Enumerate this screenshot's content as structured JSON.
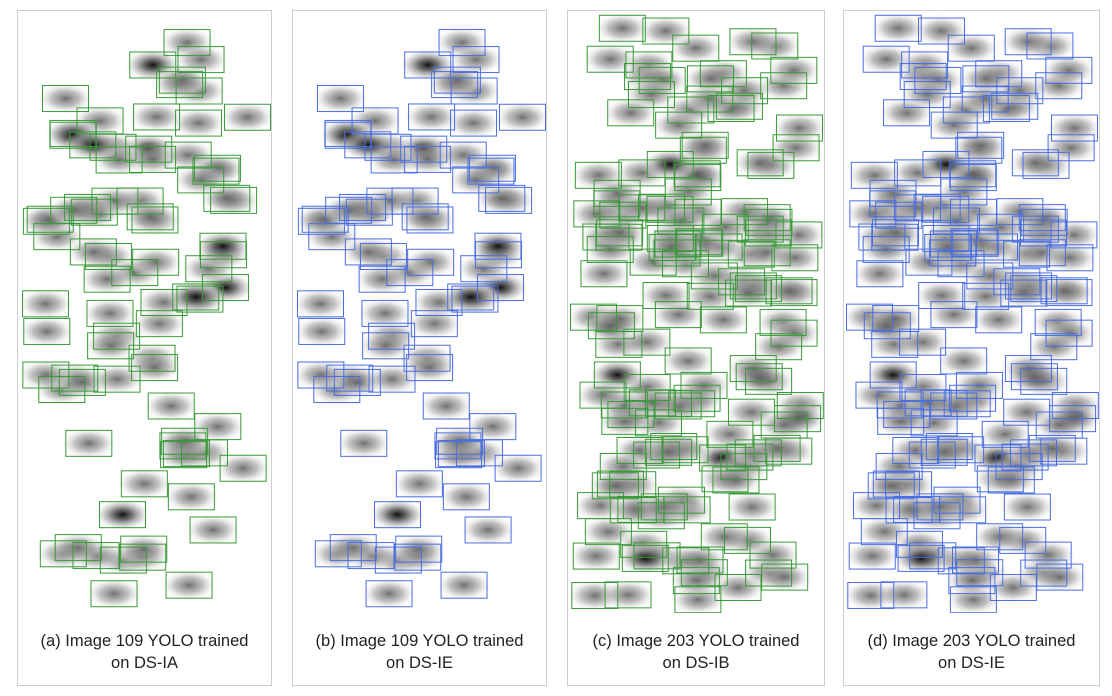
{
  "panels": [
    {
      "caption_line1": "(a) Image 109 YOLO trained",
      "caption_line2": "on DS-IA",
      "box_color": "#3a9a3a",
      "density": "sparse"
    },
    {
      "caption_line1": "(b) Image 109 YOLO trained",
      "caption_line2": "on DS-IE",
      "box_color": "#4a6ee0",
      "density": "sparse"
    },
    {
      "caption_line1": "(c) Image 203 YOLO trained",
      "caption_line2": "on DS-IB",
      "box_color": "#3a9a3a",
      "density": "dense"
    },
    {
      "caption_line1": "(d) Image 203 YOLO trained",
      "caption_line2": "on DS-IE",
      "box_color": "#4a6ee0",
      "density": "dense"
    }
  ]
}
